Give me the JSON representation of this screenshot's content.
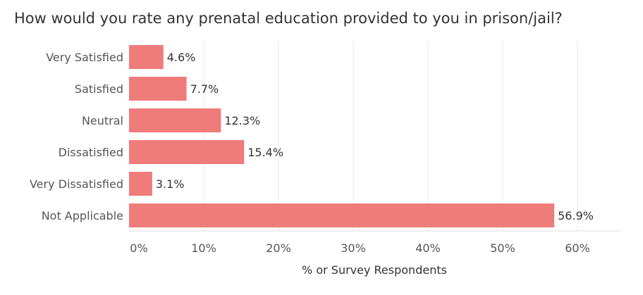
{
  "colors": {
    "bar": "#f07b7b",
    "grid": "#e8e8e8",
    "text": "#333333",
    "label": "#555555"
  },
  "chart_data": {
    "type": "bar",
    "orientation": "horizontal",
    "title": "How would you rate any prenatal education provided to you in prison/jail?",
    "xlabel": "% or Survey Respondents",
    "ylabel": "",
    "categories": [
      "Very Satisfied",
      "Satisfied",
      "Neutral",
      "Dissatisfied",
      "Very Dissatisfied",
      "Not Applicable"
    ],
    "values": [
      4.6,
      7.7,
      12.3,
      15.4,
      3.1,
      56.9
    ],
    "data_labels": [
      "4.6%",
      "7.7%",
      "12.3%",
      "15.4%",
      "3.1%",
      "56.9%"
    ],
    "xlim": [
      0,
      66
    ],
    "xticks": [
      0,
      10,
      20,
      30,
      40,
      50,
      60
    ],
    "xtick_labels": [
      "0%",
      "10%",
      "20%",
      "30%",
      "40%",
      "50%",
      "60%"
    ],
    "grid": "vertical"
  }
}
